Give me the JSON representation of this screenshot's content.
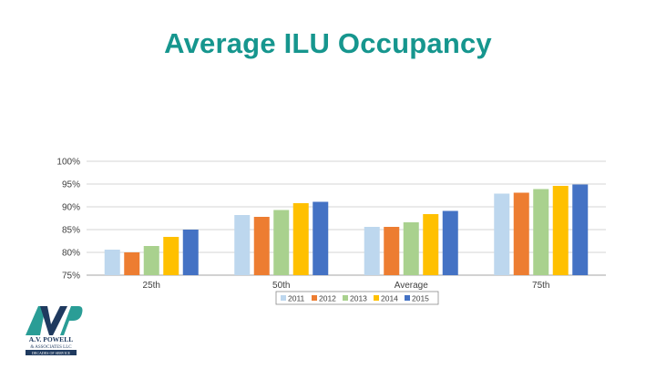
{
  "slide": {
    "title": "Average ILU Occupancy"
  },
  "colors": {
    "title": "#16968E",
    "series": [
      "#BDD7EE",
      "#ED7D31",
      "#A9D18E",
      "#FFC000",
      "#4472C4"
    ],
    "logo_teal": "#2A9D96",
    "logo_dark": "#1F3A5F"
  },
  "chart_data": {
    "type": "bar",
    "title": "",
    "xlabel": "",
    "ylabel": "",
    "categories": [
      "25th",
      "50th",
      "Average",
      "75th"
    ],
    "series": [
      {
        "name": "2011",
        "values": [
          80.6,
          88.2,
          85.6,
          92.9
        ]
      },
      {
        "name": "2012",
        "values": [
          80.0,
          87.8,
          85.6,
          93.1
        ]
      },
      {
        "name": "2013",
        "values": [
          81.4,
          89.3,
          86.6,
          93.9
        ]
      },
      {
        "name": "2014",
        "values": [
          83.4,
          90.8,
          88.4,
          94.6
        ]
      },
      {
        "name": "2015",
        "values": [
          85.0,
          91.1,
          89.1,
          94.9
        ]
      }
    ],
    "ylim": [
      75,
      100
    ],
    "yticks": [
      75,
      80,
      85,
      90,
      95,
      100
    ],
    "ytick_labels": [
      "75%",
      "80%",
      "85%",
      "90%",
      "95%",
      "100%"
    ],
    "grid": true,
    "legend_position": "bottom"
  },
  "logo": {
    "line1": "A.V. POWELL",
    "line2": "& ASSOCIATES LLC",
    "tagline": "DECADES OF SERVICE"
  }
}
